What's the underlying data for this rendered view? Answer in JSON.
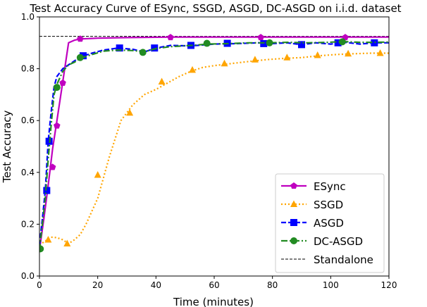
{
  "chart_data": {
    "type": "line",
    "title": "Test Accuracy Curve of ESync, SSGD, ASGD, DC-ASGD on i.i.d. dataset",
    "xlabel": "Time (minutes)",
    "ylabel": "Test Accuracy",
    "xlim": [
      0,
      120
    ],
    "ylim": [
      0.0,
      1.0
    ],
    "xticks": [
      0,
      20,
      40,
      60,
      80,
      100,
      120
    ],
    "xtick_labels": [
      "0",
      "20",
      "40",
      "60",
      "80",
      "100",
      "120"
    ],
    "yticks": [
      0.0,
      0.2,
      0.4,
      0.6,
      0.8,
      1.0
    ],
    "ytick_labels": [
      "0.0",
      "0.2",
      "0.4",
      "0.6",
      "0.8",
      "1.0"
    ],
    "grid": false,
    "legend_position": "lower-right",
    "reference_line": {
      "name": "Standalone",
      "value": 0.925,
      "color": "#000000",
      "style": "dashed"
    },
    "series": [
      {
        "name": "ESync",
        "color": "#bf00bf",
        "style": "solid",
        "marker": "pentagon",
        "x": [
          0,
          1.5,
          3,
          4.5,
          6,
          8,
          10,
          12,
          14,
          20,
          30,
          45,
          60,
          76,
          90,
          105,
          120
        ],
        "y": [
          0.1,
          0.22,
          0.35,
          0.49,
          0.6,
          0.75,
          0.9,
          0.91,
          0.915,
          0.918,
          0.92,
          0.922,
          0.922,
          0.922,
          0.922,
          0.922,
          0.922
        ],
        "marker_x": [
          4.5,
          6,
          8,
          14,
          45,
          76,
          105
        ],
        "marker_y": [
          0.42,
          0.58,
          0.745,
          0.915,
          0.921,
          0.921,
          0.921
        ]
      },
      {
        "name": "SSGD",
        "color": "#ffa500",
        "style": "dotted",
        "marker": "triangle",
        "x": [
          0,
          2,
          4,
          6,
          8,
          10,
          12,
          14,
          16,
          20,
          24,
          28,
          32,
          36,
          40,
          44,
          48,
          52,
          56,
          60,
          66,
          72,
          78,
          84,
          90,
          96,
          102,
          108,
          114,
          120
        ],
        "y": [
          0.12,
          0.135,
          0.15,
          0.148,
          0.14,
          0.125,
          0.14,
          0.16,
          0.2,
          0.3,
          0.46,
          0.6,
          0.66,
          0.7,
          0.72,
          0.745,
          0.77,
          0.79,
          0.805,
          0.812,
          0.82,
          0.828,
          0.835,
          0.84,
          0.843,
          0.85,
          0.855,
          0.858,
          0.86,
          0.86
        ],
        "marker_x": [
          3,
          9.5,
          20,
          31,
          42,
          52.5,
          63.5,
          74,
          85,
          95.5,
          106,
          117
        ],
        "marker_y": [
          0.14,
          0.125,
          0.39,
          0.63,
          0.75,
          0.795,
          0.82,
          0.835,
          0.843,
          0.852,
          0.858,
          0.86
        ]
      },
      {
        "name": "ASGD",
        "color": "#0000ff",
        "style": "dashed",
        "marker": "square",
        "x": [
          0,
          1,
          2,
          3,
          4,
          5,
          6,
          8,
          10,
          12,
          14,
          18,
          22,
          27,
          32,
          36,
          40,
          45,
          52,
          60,
          68,
          75,
          80,
          85,
          90,
          95,
          100,
          105,
          110,
          115,
          120
        ],
        "y": [
          0.12,
          0.22,
          0.33,
          0.52,
          0.63,
          0.73,
          0.77,
          0.8,
          0.815,
          0.83,
          0.845,
          0.86,
          0.872,
          0.88,
          0.875,
          0.865,
          0.88,
          0.89,
          0.888,
          0.895,
          0.897,
          0.9,
          0.897,
          0.9,
          0.893,
          0.9,
          0.895,
          0.902,
          0.895,
          0.9,
          0.9
        ],
        "marker_x": [
          2.5,
          3.3,
          15,
          27.5,
          39.5,
          52,
          64.5,
          77,
          90,
          102.5,
          115
        ],
        "marker_y": [
          0.33,
          0.52,
          0.85,
          0.88,
          0.88,
          0.89,
          0.898,
          0.897,
          0.893,
          0.9,
          0.9
        ]
      },
      {
        "name": "DC-ASGD",
        "color": "#228b22",
        "style": "dashdot",
        "marker": "circle",
        "x": [
          0,
          1,
          2,
          3,
          4,
          5,
          6,
          8,
          10,
          12,
          14,
          18,
          22,
          27,
          32,
          36,
          40,
          45,
          52,
          58,
          65,
          72,
          79,
          85,
          92,
          99,
          104,
          110,
          115,
          120
        ],
        "y": [
          0.1,
          0.2,
          0.3,
          0.45,
          0.58,
          0.7,
          0.74,
          0.79,
          0.815,
          0.825,
          0.84,
          0.855,
          0.868,
          0.872,
          0.87,
          0.865,
          0.878,
          0.885,
          0.89,
          0.895,
          0.897,
          0.9,
          0.9,
          0.902,
          0.9,
          0.902,
          0.905,
          0.902,
          0.902,
          0.903
        ],
        "marker_x": [
          0.3,
          6,
          14,
          35.5,
          57.5,
          79,
          104
        ],
        "marker_y": [
          0.105,
          0.728,
          0.843,
          0.863,
          0.898,
          0.9,
          0.904
        ]
      }
    ]
  }
}
